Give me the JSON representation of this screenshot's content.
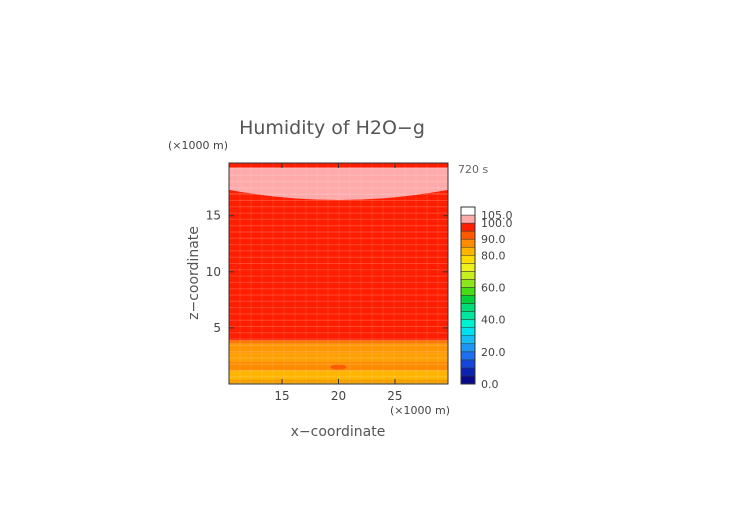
{
  "chart_data": {
    "type": "heatmap",
    "title": "Humidity of H2O−g",
    "time_label": "720 s",
    "xlabel": "x−coordinate",
    "ylabel": "z−coordinate",
    "x_unit": "(×1000 m)",
    "y_unit": "(×1000 m)",
    "xlim": [
      10.3,
      29.7
    ],
    "ylim": [
      0,
      19.7
    ],
    "x_ticks": [
      {
        "value": 15,
        "label": "15"
      },
      {
        "value": 20,
        "label": "20"
      },
      {
        "value": 25,
        "label": "25"
      }
    ],
    "y_ticks": [
      {
        "value": 5,
        "label": "5"
      },
      {
        "value": 10,
        "label": "10"
      },
      {
        "value": 15,
        "label": "15"
      }
    ],
    "colorbar": {
      "levels": [
        {
          "from": 0,
          "to": 5,
          "color": "#0a0a8c"
        },
        {
          "from": 5,
          "to": 10,
          "color": "#0a23b4"
        },
        {
          "from": 10,
          "to": 15,
          "color": "#1446dc"
        },
        {
          "from": 15,
          "to": 20,
          "color": "#1e6ef0"
        },
        {
          "from": 20,
          "to": 25,
          "color": "#1e96f5"
        },
        {
          "from": 25,
          "to": 30,
          "color": "#14bef5"
        },
        {
          "from": 30,
          "to": 35,
          "color": "#00e1f0"
        },
        {
          "from": 35,
          "to": 40,
          "color": "#00f0d2"
        },
        {
          "from": 40,
          "to": 45,
          "color": "#00e6a0"
        },
        {
          "from": 45,
          "to": 50,
          "color": "#00dc78"
        },
        {
          "from": 50,
          "to": 55,
          "color": "#00d23c"
        },
        {
          "from": 55,
          "to": 60,
          "color": "#46dc14"
        },
        {
          "from": 60,
          "to": 65,
          "color": "#8ce61e"
        },
        {
          "from": 65,
          "to": 70,
          "color": "#c8f01e"
        },
        {
          "from": 70,
          "to": 75,
          "color": "#f0f01e"
        },
        {
          "from": 75,
          "to": 80,
          "color": "#ffdc00"
        },
        {
          "from": 80,
          "to": 85,
          "color": "#ffb400"
        },
        {
          "from": 85,
          "to": 90,
          "color": "#ff8c00"
        },
        {
          "from": 90,
          "to": 95,
          "color": "#ff5a00"
        },
        {
          "from": 95,
          "to": 100,
          "color": "#ff1e00"
        },
        {
          "from": 100,
          "to": 105,
          "color": "#ffaaaa"
        },
        {
          "from": 105,
          "to": 110,
          "color": "#ffffff"
        }
      ],
      "tick_labels": [
        {
          "value": 0,
          "label": "0.0"
        },
        {
          "value": 20,
          "label": "20.0"
        },
        {
          "value": 40,
          "label": "40.0"
        },
        {
          "value": 60,
          "label": "60.0"
        },
        {
          "value": 80,
          "label": "80.0"
        },
        {
          "value": 90,
          "label": "90.0"
        },
        {
          "value": 100,
          "label": "100.0"
        },
        {
          "value": 105,
          "label": "105.0"
        }
      ]
    },
    "z_bands": [
      {
        "z0": 0.0,
        "z1": 0.4,
        "value": 82,
        "color": "#f5a000"
      },
      {
        "z0": 0.4,
        "z1": 1.2,
        "value": 85,
        "color": "#ffb400"
      },
      {
        "z0": 1.2,
        "z1": 2.0,
        "value": 90,
        "color": "#ff8c00"
      },
      {
        "z0": 2.0,
        "z1": 2.7,
        "value": 86,
        "color": "#ffa000"
      },
      {
        "z0": 2.7,
        "z1": 3.6,
        "value": 88,
        "color": "#ff9600"
      },
      {
        "z0": 3.6,
        "z1": 3.9,
        "value": 92,
        "color": "#ff7800"
      },
      {
        "z0": 3.9,
        "z1": 17.0,
        "value": 97,
        "color": "#ff1e00"
      },
      {
        "z0": 17.0,
        "z1": 19.7,
        "value": 97,
        "color": "#ff1e00"
      }
    ],
    "supersaturated_region": {
      "value_range": [
        100,
        105
      ],
      "color": "#ffaaaa",
      "top_z": 19.3,
      "bottom_z_at_center": 16.4,
      "bottom_z_at_edges": 17.3,
      "center_x": 20
    },
    "local_patch": {
      "x": 20,
      "z": 1.5,
      "value": 92,
      "color": "#ff5a00"
    }
  }
}
